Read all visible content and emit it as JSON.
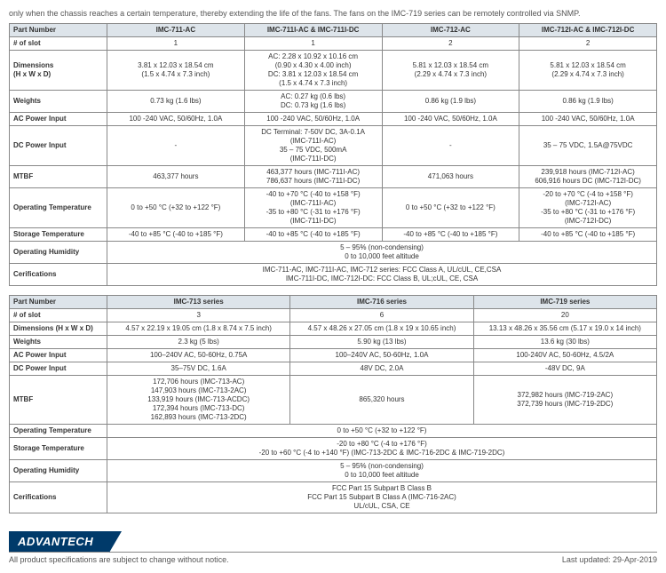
{
  "intro": "only when the chassis reaches a certain temperature, thereby extending the life of the fans. The fans on the IMC-719 series can be remotely controlled via SNMP.",
  "table1": {
    "headers": [
      "Part Number",
      "IMC-711-AC",
      "IMC-711I-AC & IMC-711I-DC",
      "IMC-712-AC",
      "IMC-712I-AC & IMC-712I-DC"
    ],
    "rows": [
      {
        "label": "# of slot",
        "cells": [
          "1",
          "1",
          "2",
          "2"
        ]
      },
      {
        "label": "Dimensions\n(H x W x D)",
        "cells": [
          "3.81 x 12.03 x 18.54 cm\n(1.5 x 4.74 x 7.3 inch)",
          "AC: 2.28 x 10.92 x 10.16 cm\n(0.90 x 4.30 x 4.00 inch)\nDC: 3.81 x 12.03 x 18.54 cm\n(1.5 x 4.74 x 7.3 inch)",
          "5.81 x 12.03 x 18.54 cm\n(2.29 x 4.74 x 7.3 inch)",
          "5.81 x 12.03 x 18.54 cm\n(2.29 x 4.74 x 7.3 inch)"
        ]
      },
      {
        "label": "Weights",
        "cells": [
          "0.73 kg (1.6 lbs)",
          "AC: 0.27 kg (0.6 lbs)\nDC: 0.73 kg (1.6 lbs)",
          "0.86 kg (1.9 lbs)",
          "0.86 kg (1.9 lbs)"
        ]
      },
      {
        "label": "AC Power Input",
        "cells": [
          "100 -240 VAC, 50/60Hz, 1.0A",
          "100 -240 VAC, 50/60Hz, 1.0A",
          "100 -240 VAC, 50/60Hz, 1.0A",
          "100 -240 VAC, 50/60Hz, 1.0A"
        ]
      },
      {
        "label": "DC Power Input",
        "cells": [
          "-",
          "DC Terminal: 7-50V DC, 3A-0.1A\n(IMC-711I-AC)\n35 – 75 VDC, 500mA\n(IMC-711I-DC)",
          "-",
          "35 – 75 VDC, 1.5A@75VDC"
        ]
      },
      {
        "label": "MTBF",
        "cells": [
          "463,377 hours",
          "463,377 hours (IMC-711I-AC)\n786,637 hours (IMC-711I-DC)",
          "471,063 hours",
          "239,918 hours (IMC-712I-AC)\n606,916 hours DC (IMC-712I-DC)"
        ]
      },
      {
        "label": "Operating Temperature",
        "cells": [
          "0 to +50 °C (+32 to +122 °F)",
          "-40 to +70 °C (-40 to +158 °F)\n(IMC-711I-AC)\n-35 to +80 °C (-31 to +176 °F)\n(IMC-711I-DC)",
          "0 to +50 °C (+32 to +122 °F)",
          "-20 to +70 °C (-4 to +158 °F)\n(IMC-712I-AC)\n-35 to +80 °C (-31 to +176 °F)\n(IMC-712I-DC)"
        ]
      },
      {
        "label": "Storage Temperature",
        "cells": [
          "-40 to +85 °C (-40 to +185 °F)",
          "-40 to +85 °C (-40 to +185 °F)",
          "-40 to +85 °C (-40 to +185 °F)",
          "-40 to +85 °C (-40 to +185 °F)"
        ]
      },
      {
        "label": "Operating Humidity",
        "span": "5 – 95% (non-condensing)\n0 to 10,000 feet altitude"
      },
      {
        "label": "Cerifications",
        "span": "IMC-711-AC, IMC-711I-AC, IMC-712 series: FCC Class A, UL/cUL, CE,CSA\nIMC-711I-DC, IMC-712I-DC: FCC Class B, UL;cUL, CE, CSA"
      }
    ]
  },
  "table2": {
    "headers": [
      "Part Number",
      "IMC-713 series",
      "IMC-716 series",
      "IMC-719 series"
    ],
    "rows": [
      {
        "label": "# of slot",
        "cells": [
          "3",
          "6",
          "20"
        ]
      },
      {
        "label": "Dimensions (H x W x D)",
        "cells": [
          "4.57 x 22.19 x 19.05 cm (1.8 x 8.74 x 7.5 inch)",
          "4.57 x 48.26 x 27.05 cm (1.8 x 19 x 10.65 inch)",
          "13.13 x 48.26 x 35.56 cm (5.17 x 19.0 x 14 inch)"
        ]
      },
      {
        "label": "Weights",
        "cells": [
          "2.3 kg (5 lbs)",
          "5.90 kg (13 lbs)",
          "13.6 kg (30 lbs)"
        ]
      },
      {
        "label": "AC Power Input",
        "cells": [
          "100–240V AC, 50-60Hz, 0.75A",
          "100–240V AC, 50-60Hz, 1.0A",
          "100-240V AC, 50-60Hz, 4.5/2A"
        ]
      },
      {
        "label": "DC Power Input",
        "cells": [
          "35–75V DC, 1.6A",
          "48V DC, 2.0A",
          "-48V DC, 9A"
        ]
      },
      {
        "label": "MTBF",
        "cells": [
          "172,706 hours (IMC-713-AC)\n147,903 hours (IMC-713-2AC)\n133,919 hours (IMC-713-ACDC)\n172,394 hours (IMC-713-DC)\n162,893 hours (IMC-713-2DC)",
          "865,320 hours",
          "372,982 hours (IMC-719-2AC)\n372,739 hours (IMC-719-2DC)"
        ]
      },
      {
        "label": "Operating Temperature",
        "span": "0 to +50 °C (+32 to +122 °F)"
      },
      {
        "label": "Storage Temperature",
        "span": "-20 to +80 °C (-4 to +176 °F)\n-20 to +60 °C (-4 to +140 °F) (IMC-713-2DC & IMC-716-2DC & IMC-719-2DC)"
      },
      {
        "label": "Operating Humidity",
        "span": "5 – 95% (non-condensing)\n0 to 10,000 feet altitude"
      },
      {
        "label": "Cerifications",
        "span": "FCC Part 15 Subpart B Class B\nFCC Part 15 Subpart B Class A (IMC-716-2AC)\nUL/cUL, CSA, CE"
      }
    ]
  },
  "footer": {
    "brand": "ADVANTECH",
    "notice": "All product specifications are subject to change without notice.",
    "updated": "Last updated: 29-Apr-2019"
  },
  "colors": {
    "header_bg": "#dde4ea",
    "border": "#888888",
    "brand_bg": "#003a6a"
  }
}
